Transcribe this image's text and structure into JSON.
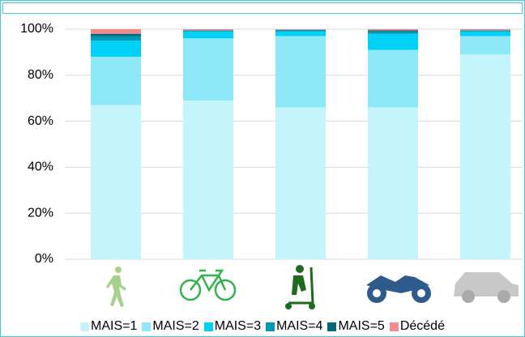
{
  "chart_data": {
    "type": "stacked_bar",
    "categories": [
      null,
      null,
      null,
      null,
      null
    ],
    "series": [
      {
        "name": "MAIS=1",
        "color": "#c4f5fc",
        "values": [
          67,
          69,
          66,
          66,
          89
        ]
      },
      {
        "name": "MAIS=2",
        "color": "#8ee8f8",
        "values": [
          21,
          27,
          31,
          25,
          8
        ]
      },
      {
        "name": "MAIS=3",
        "color": "#00d0f5",
        "values": [
          7,
          3,
          2,
          7,
          2
        ]
      },
      {
        "name": "MAIS=4",
        "color": "#0099b3",
        "values": [
          2,
          0.5,
          0.7,
          1,
          0.5
        ]
      },
      {
        "name": "MAIS=5",
        "color": "#006878",
        "values": [
          1,
          0,
          0,
          0.5,
          0
        ]
      },
      {
        "name": "Décédé",
        "color": "#f28b8b",
        "values": [
          2,
          0.5,
          0.3,
          0.5,
          0.5
        ]
      }
    ],
    "ylim": [
      0,
      100
    ],
    "yticks": [
      {
        "value": 0,
        "label": "0%"
      },
      {
        "value": 20,
        "label": "20%"
      },
      {
        "value": 40,
        "label": "40%"
      },
      {
        "value": 60,
        "label": "60%"
      },
      {
        "value": 80,
        "label": "80%"
      },
      {
        "value": 100,
        "label": "100%"
      }
    ],
    "grid": true
  }
}
